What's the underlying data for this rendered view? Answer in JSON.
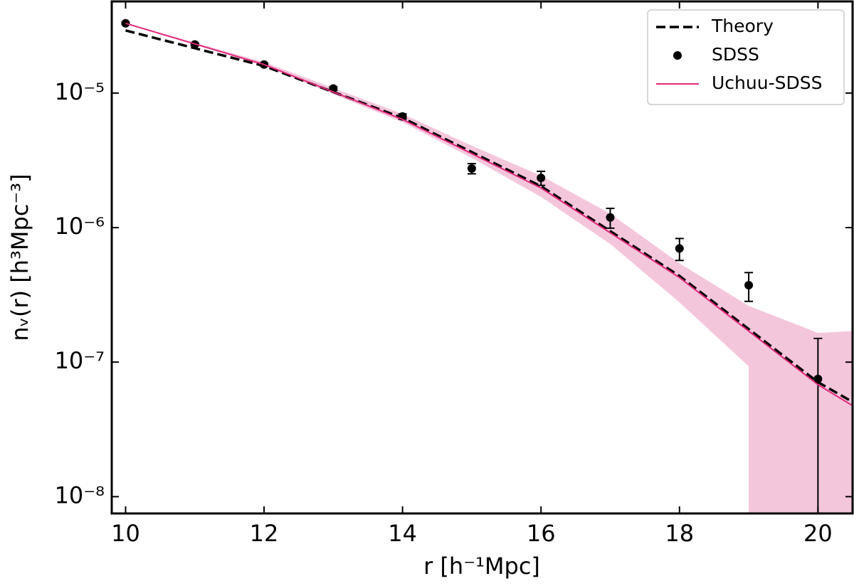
{
  "chart_data": {
    "type": "line",
    "x_label": "r [h⁻¹Mpc]",
    "y_label": "nᵥ(r) [h³Mpc⁻³]",
    "xlim": [
      9.8,
      20.5
    ],
    "xticks": [
      10,
      12,
      14,
      16,
      18,
      20
    ],
    "ylim": [
      7.5e-09,
      4.8e-05
    ],
    "y_scale": "log",
    "yticks": [
      {
        "value": 1e-05,
        "label": "10⁻⁵"
      },
      {
        "value": 1e-06,
        "label": "10⁻⁶"
      },
      {
        "value": 1e-07,
        "label": "10⁻⁷"
      },
      {
        "value": 1e-08,
        "label": "10⁻⁸"
      }
    ],
    "legend": "upper right",
    "band": {
      "color": "#f4c6dc",
      "x": [
        10,
        12,
        14,
        15,
        16,
        17,
        18,
        19,
        19,
        20,
        20.5
      ],
      "upper": [
        3.3e-05,
        1.7e-05,
        7e-06,
        4.06e-06,
        2.43e-06,
        1.27e-06,
        5.43e-07,
        2.62e-07,
        2.62e-07,
        1.65e-07,
        1.7e-07
      ],
      "lower": [
        3.3e-05,
        1.59e-05,
        6.07e-06,
        3.3e-06,
        1.69e-06,
        7.55e-07,
        2.78e-07,
        9.3e-08,
        0,
        0,
        0
      ]
    },
    "series": [
      {
        "name": "Theory",
        "color": "#000000",
        "style": "dashed",
        "x": [
          10,
          12,
          14,
          16,
          18,
          20,
          20.5
        ],
        "values": [
          2.92e-05,
          1.59e-05,
          6.53e-06,
          2.03e-06,
          4.37e-07,
          7.1e-08,
          5.06e-08
        ]
      },
      {
        "name": "SDSS",
        "color": "#000000",
        "style": "marker",
        "x": [
          10,
          11,
          12,
          13,
          14,
          15,
          16,
          17,
          18,
          19,
          20
        ],
        "values": [
          3.3e-05,
          2.3e-05,
          1.63e-05,
          1.08e-05,
          6.7e-06,
          2.75e-06,
          2.34e-06,
          1.19e-06,
          7e-07,
          3.73e-07,
          7.5e-08
        ],
        "errors": [
          5e-07,
          5e-07,
          4e-07,
          3e-07,
          3e-07,
          2.4e-07,
          2.8e-07,
          2e-07,
          1.3e-07,
          9e-08,
          7.5e-08
        ]
      },
      {
        "name": "Uchuu-SDSS",
        "color": "#e0287a",
        "style": "solid",
        "x": [
          10,
          12,
          14,
          16,
          18,
          20,
          20.5
        ],
        "values": [
          3.3e-05,
          1.63e-05,
          6.37e-06,
          1.97e-06,
          4.25e-07,
          6.8e-08,
          4.75e-08
        ]
      }
    ]
  }
}
